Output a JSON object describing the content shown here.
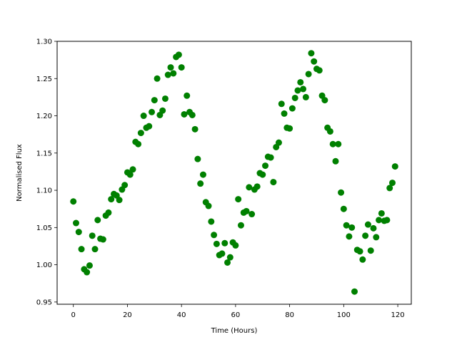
{
  "chart_data": {
    "type": "scatter",
    "xlabel": "Time (Hours)",
    "ylabel": "Normalised Flux",
    "xlim": [
      -6,
      125
    ],
    "ylim": [
      0.947,
      1.3
    ],
    "xticks": [
      0,
      20,
      40,
      60,
      80,
      100,
      120
    ],
    "yticks": [
      0.95,
      1.0,
      1.05,
      1.1,
      1.15,
      1.2,
      1.25,
      1.3
    ],
    "xtick_labels": [
      "0",
      "20",
      "40",
      "60",
      "80",
      "100",
      "120"
    ],
    "ytick_labels": [
      "0.95",
      "1.00",
      "1.05",
      "1.10",
      "1.15",
      "1.20",
      "1.25",
      "1.30"
    ],
    "grid": false,
    "marker_color": "#008000",
    "series": [
      {
        "x": [
          0,
          1,
          2,
          3,
          4,
          5,
          6,
          7,
          8,
          9,
          10,
          11,
          12,
          13,
          14,
          15,
          16,
          17,
          18,
          19,
          20,
          21,
          22,
          23,
          24,
          25,
          26,
          27,
          28,
          29,
          30,
          31,
          32,
          33,
          34,
          35,
          36,
          37,
          38,
          39,
          40,
          41,
          42,
          43,
          44,
          45,
          46,
          47,
          48,
          49,
          50,
          51,
          52,
          53,
          54,
          55,
          56,
          57,
          58,
          59,
          60,
          61,
          62,
          63,
          64,
          65,
          66,
          67,
          68,
          69,
          70,
          71,
          72,
          73,
          74,
          75,
          76,
          77,
          78,
          79,
          80,
          81,
          82,
          83,
          84,
          85,
          86,
          87,
          88,
          89,
          90,
          91,
          92,
          93,
          94,
          95,
          96,
          97,
          98,
          99,
          100,
          101,
          102,
          103,
          104,
          105,
          106,
          107,
          108,
          109,
          110,
          111,
          112,
          113,
          114,
          115,
          116,
          117,
          118,
          119
        ],
        "y": [
          1.085,
          1.056,
          1.044,
          1.021,
          0.994,
          0.99,
          0.999,
          1.039,
          1.021,
          1.06,
          1.035,
          1.034,
          1.066,
          1.07,
          1.088,
          1.095,
          1.093,
          1.087,
          1.101,
          1.107,
          1.124,
          1.121,
          1.128,
          1.165,
          1.162,
          1.177,
          1.2,
          1.184,
          1.186,
          1.205,
          1.221,
          1.25,
          1.201,
          1.207,
          1.223,
          1.255,
          1.265,
          1.257,
          1.279,
          1.282,
          1.265,
          1.202,
          1.227,
          1.205,
          1.201,
          1.182,
          1.142,
          1.109,
          1.121,
          1.084,
          1.079,
          1.058,
          1.04,
          1.028,
          1.013,
          1.015,
          1.029,
          1.003,
          1.01,
          1.03,
          1.026,
          1.088,
          1.053,
          1.07,
          1.072,
          1.104,
          1.068,
          1.101,
          1.105,
          1.123,
          1.121,
          1.133,
          1.145,
          1.144,
          1.111,
          1.158,
          1.164,
          1.216,
          1.203,
          1.184,
          1.183,
          1.21,
          1.224,
          1.234,
          1.245,
          1.236,
          1.225,
          1.256,
          1.284,
          1.273,
          1.263,
          1.261,
          1.227,
          1.221,
          1.184,
          1.179,
          1.162,
          1.139,
          1.162,
          1.097,
          1.075,
          1.053,
          1.038,
          1.05,
          0.964,
          1.02,
          1.018,
          1.007,
          1.039,
          1.054,
          1.019,
          1.049,
          1.037,
          1.06,
          1.069,
          1.059,
          1.06,
          1.103,
          1.11,
          1.132
        ]
      }
    ]
  }
}
